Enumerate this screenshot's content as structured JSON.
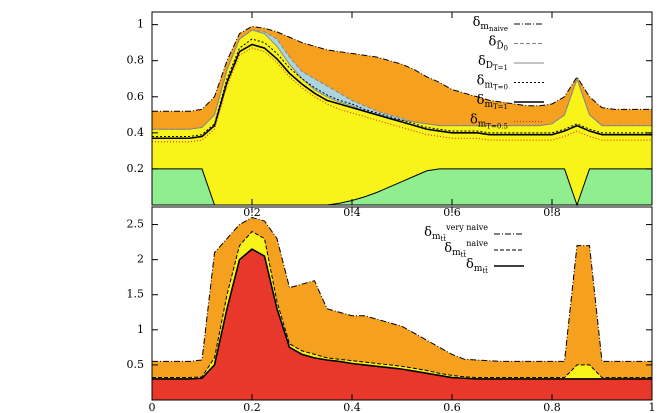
{
  "chart_data": [
    {
      "type": "line",
      "x": [
        0,
        0.025,
        0.05,
        0.075,
        0.1,
        0.125,
        0.15,
        0.175,
        0.2,
        0.225,
        0.25,
        0.275,
        0.3,
        0.325,
        0.35,
        0.375,
        0.4,
        0.425,
        0.45,
        0.475,
        0.5,
        0.525,
        0.55,
        0.575,
        0.6,
        0.625,
        0.65,
        0.675,
        0.7,
        0.725,
        0.75,
        0.775,
        0.8,
        0.825,
        0.85,
        0.875,
        0.9,
        0.925,
        0.95,
        0.975,
        1
      ],
      "xlim": [
        0,
        1
      ],
      "xticks": [
        0.2,
        0.4,
        0.6,
        0.8
      ],
      "ylim": [
        0,
        1.07
      ],
      "yticks": [
        0.2,
        0.4,
        0.6,
        0.8,
        1
      ],
      "series": [
        {
          "name": "δ",
          "sub": "m",
          "subsub": "naive",
          "color": "#000000",
          "dash": "6,2,1,2",
          "fill": "#f5a01e",
          "values": [
            0.52,
            0.52,
            0.52,
            0.52,
            0.53,
            0.6,
            0.8,
            0.95,
            0.99,
            0.98,
            0.96,
            0.93,
            0.9,
            0.88,
            0.86,
            0.85,
            0.84,
            0.83,
            0.82,
            0.8,
            0.78,
            0.75,
            0.71,
            0.68,
            0.64,
            0.62,
            0.6,
            0.58,
            0.57,
            0.56,
            0.55,
            0.55,
            0.56,
            0.6,
            0.71,
            0.6,
            0.54,
            0.53,
            0.53,
            0.53,
            0.53
          ]
        },
        {
          "name": "δ",
          "sub": "D̃",
          "subsub": "0",
          "color": "#888888",
          "dash": "4,2",
          "fill": "#aad4e0",
          "values": [
            0.42,
            0.42,
            0.42,
            0.42,
            0.43,
            0.5,
            0.75,
            0.92,
            0.97,
            0.96,
            0.92,
            0.82,
            0.74,
            0.7,
            0.66,
            0.62,
            0.58,
            0.55,
            0.52,
            0.5,
            0.48,
            0.46,
            0.45,
            0.44,
            0.44,
            0.44,
            0.44,
            0.44,
            0.44,
            0.44,
            0.44,
            0.44,
            0.45,
            0.5,
            0.7,
            0.5,
            0.44,
            0.44,
            0.44,
            0.44,
            0.44
          ]
        },
        {
          "name": "δ",
          "sub": "D",
          "subsub": "T=1",
          "color": "#888888",
          "dash": "none",
          "fill": "#f8f41a",
          "values": [
            0.42,
            0.42,
            0.42,
            0.42,
            0.43,
            0.5,
            0.75,
            0.92,
            0.97,
            0.95,
            0.88,
            0.78,
            0.7,
            0.64,
            0.6,
            0.57,
            0.55,
            0.52,
            0.5,
            0.48,
            0.47,
            0.46,
            0.45,
            0.44,
            0.44,
            0.44,
            0.44,
            0.44,
            0.44,
            0.44,
            0.44,
            0.44,
            0.45,
            0.5,
            0.7,
            0.5,
            0.44,
            0.44,
            0.44,
            0.44,
            0.44
          ]
        },
        {
          "name": "δ",
          "sub": "m",
          "subsub": "T=0",
          "color": "#000000",
          "dash": "2,2",
          "values": [
            0.38,
            0.38,
            0.38,
            0.38,
            0.39,
            0.45,
            0.7,
            0.87,
            0.92,
            0.9,
            0.84,
            0.76,
            0.7,
            0.65,
            0.61,
            0.58,
            0.56,
            0.53,
            0.51,
            0.49,
            0.47,
            0.45,
            0.43,
            0.42,
            0.41,
            0.41,
            0.41,
            0.4,
            0.4,
            0.4,
            0.4,
            0.4,
            0.4,
            0.42,
            0.45,
            0.42,
            0.4,
            0.4,
            0.4,
            0.4,
            0.4
          ]
        },
        {
          "name": "δ",
          "sub": "m",
          "subsub": "T=1",
          "color": "#000000",
          "dash": "none",
          "width": 1.6,
          "values": [
            0.37,
            0.37,
            0.37,
            0.37,
            0.38,
            0.44,
            0.68,
            0.85,
            0.89,
            0.87,
            0.81,
            0.73,
            0.67,
            0.62,
            0.58,
            0.56,
            0.54,
            0.52,
            0.5,
            0.48,
            0.46,
            0.44,
            0.42,
            0.41,
            0.4,
            0.4,
            0.4,
            0.39,
            0.39,
            0.39,
            0.39,
            0.39,
            0.39,
            0.41,
            0.44,
            0.41,
            0.39,
            0.39,
            0.39,
            0.39,
            0.39
          ]
        },
        {
          "name": "δ",
          "sub": "m",
          "subsub": "T=0.5",
          "color": "#e02020",
          "dash": "1,2",
          "values": [
            0.35,
            0.35,
            0.35,
            0.35,
            0.36,
            0.42,
            0.66,
            0.83,
            0.87,
            0.85,
            0.79,
            0.71,
            0.65,
            0.6,
            0.56,
            0.53,
            0.51,
            0.49,
            0.47,
            0.45,
            0.43,
            0.41,
            0.39,
            0.38,
            0.37,
            0.37,
            0.37,
            0.36,
            0.36,
            0.36,
            0.36,
            0.36,
            0.36,
            0.38,
            0.41,
            0.38,
            0.36,
            0.36,
            0.36,
            0.36,
            0.36
          ]
        },
        {
          "color": "#000000",
          "dash": "none",
          "fill": "#90ee90",
          "values": [
            0.2,
            0.2,
            0.2,
            0.2,
            0.2,
            0,
            0,
            0,
            0,
            0,
            0,
            0,
            0,
            0,
            0,
            0.01,
            0.025,
            0.045,
            0.07,
            0.1,
            0.13,
            0.16,
            0.19,
            0.2,
            0.2,
            0.2,
            0.2,
            0.2,
            0.2,
            0.2,
            0.2,
            0.2,
            0.2,
            0.2,
            0,
            0.2,
            0.2,
            0.2,
            0.2,
            0.2,
            0.2
          ]
        }
      ]
    },
    {
      "type": "line",
      "x": [
        0,
        0.025,
        0.05,
        0.075,
        0.1,
        0.125,
        0.15,
        0.175,
        0.2,
        0.225,
        0.25,
        0.275,
        0.3,
        0.325,
        0.35,
        0.375,
        0.4,
        0.425,
        0.45,
        0.475,
        0.5,
        0.525,
        0.55,
        0.575,
        0.6,
        0.625,
        0.65,
        0.675,
        0.7,
        0.725,
        0.75,
        0.775,
        0.8,
        0.825,
        0.85,
        0.875,
        0.9,
        0.925,
        0.95,
        0.975,
        1
      ],
      "xlim": [
        0,
        1
      ],
      "xticks": [
        0,
        0.2,
        0.4,
        0.6,
        0.8,
        1
      ],
      "ylim": [
        0,
        2.75
      ],
      "yticks": [
        0.5,
        1,
        1.5,
        2,
        2.5
      ],
      "series": [
        {
          "name": "δ",
          "sub": "m",
          "subsub": "tt̄",
          "sup": "very naive",
          "color": "#000000",
          "dash": "6,2,1,2",
          "fill": "#f5a01e",
          "values": [
            0.55,
            0.55,
            0.55,
            0.55,
            0.57,
            2.1,
            2.3,
            2.5,
            2.6,
            2.55,
            2.3,
            1.6,
            1.65,
            1.7,
            1.3,
            1.25,
            1.2,
            1.2,
            1.15,
            1.1,
            1.05,
            0.95,
            0.85,
            0.75,
            0.65,
            0.58,
            0.57,
            0.56,
            0.55,
            0.55,
            0.55,
            0.55,
            0.55,
            0.55,
            2.2,
            2.2,
            0.55,
            0.55,
            0.55,
            0.55,
            0.55
          ]
        },
        {
          "name": "δ",
          "sub": "m",
          "subsub": "tt̄",
          "sup": "naive",
          "color": "#000000",
          "dash": "4,2",
          "fill": "#f8f41a",
          "values": [
            0.32,
            0.32,
            0.32,
            0.32,
            0.33,
            0.6,
            1.5,
            2.2,
            2.4,
            2.3,
            1.4,
            0.8,
            0.7,
            0.65,
            0.6,
            0.58,
            0.56,
            0.54,
            0.52,
            0.5,
            0.48,
            0.45,
            0.42,
            0.38,
            0.35,
            0.33,
            0.32,
            0.32,
            0.32,
            0.32,
            0.32,
            0.32,
            0.32,
            0.32,
            0.5,
            0.5,
            0.32,
            0.32,
            0.32,
            0.32,
            0.32
          ]
        },
        {
          "name": "δ",
          "sub": "m",
          "subsub": "tt̄",
          "color": "#000000",
          "dash": "none",
          "width": 1.6,
          "fill": "#e8382b",
          "values": [
            0.3,
            0.3,
            0.3,
            0.3,
            0.31,
            0.5,
            1.3,
            2.0,
            2.15,
            2.05,
            1.3,
            0.75,
            0.65,
            0.6,
            0.57,
            0.55,
            0.52,
            0.5,
            0.48,
            0.46,
            0.44,
            0.41,
            0.38,
            0.35,
            0.32,
            0.31,
            0.3,
            0.3,
            0.3,
            0.3,
            0.3,
            0.3,
            0.3,
            0.3,
            0.3,
            0.3,
            0.3,
            0.3,
            0.3,
            0.3,
            0.3
          ]
        }
      ]
    }
  ]
}
